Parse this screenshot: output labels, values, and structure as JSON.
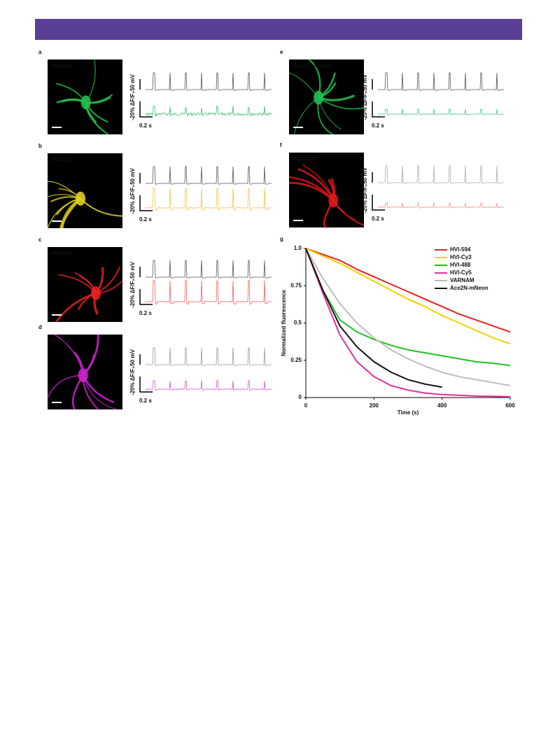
{
  "panels": [
    {
      "letter": "a",
      "label": "HVI-488",
      "voltage_scale": "50 mV",
      "fluorescence_scale": "-20% ΔF/F₀",
      "time_scale": "0.2 s"
    },
    {
      "letter": "b",
      "label": "HVI-Cy3",
      "voltage_scale": "50 mV",
      "fluorescence_scale": "-20% ΔF/F₀",
      "time_scale": "0.2 s"
    },
    {
      "letter": "c",
      "label": "HVI-594",
      "voltage_scale": "50 mV",
      "fluorescence_scale": "-20% ΔF/F₀",
      "time_scale": "0.2 s"
    },
    {
      "letter": "d",
      "label": "HVI-Cy5",
      "voltage_scale": "50 mV",
      "fluorescence_scale": "-20% ΔF/F₀",
      "time_scale": "0.2 s"
    },
    {
      "letter": "e",
      "label": "Ace2N-mNeon",
      "voltage_scale": "50 mV",
      "fluorescence_scale": "-20% ΔF/F₀",
      "time_scale": "0.2 s"
    },
    {
      "letter": "f",
      "label": "VARNAM",
      "voltage_scale": "50 mV",
      "fluorescence_scale": "-20% ΔF/F₀",
      "time_scale": "0.2 s"
    }
  ],
  "chart_data": {
    "type": "line",
    "panel_label": "g",
    "xlabel": "Time (s)",
    "ylabel": "Normalized fluorescence",
    "x": [
      0,
      50,
      100,
      150,
      200,
      250,
      300,
      350,
      400,
      450,
      500,
      550,
      600
    ],
    "xlim": [
      0,
      600
    ],
    "ylim": [
      0,
      1
    ],
    "xticks": [
      0,
      200,
      400,
      600
    ],
    "yticks": [
      0,
      0.25,
      0.5,
      0.75,
      {
        "value": 1,
        "label": "1.0"
      }
    ],
    "legend": "upper right",
    "series": [
      {
        "name": "HVI-594",
        "color": "#e8231f",
        "values": [
          1,
          0.96,
          0.92,
          0.86,
          0.81,
          0.76,
          0.71,
          0.66,
          0.61,
          0.56,
          0.52,
          0.48,
          0.44
        ]
      },
      {
        "name": "HVI-Cy3",
        "color": "#f5d000",
        "values": [
          1,
          0.95,
          0.9,
          0.84,
          0.78,
          0.72,
          0.66,
          0.61,
          0.55,
          0.5,
          0.45,
          0.4,
          0.36
        ]
      },
      {
        "name": "HVI-488",
        "color": "#1fc21f",
        "values": [
          1,
          0.72,
          0.52,
          0.44,
          0.39,
          0.35,
          0.32,
          0.3,
          0.28,
          0.26,
          0.24,
          0.23,
          0.215
        ]
      },
      {
        "name": "HVI-Cy5",
        "color": "#e0309a",
        "values": [
          1,
          0.7,
          0.42,
          0.24,
          0.14,
          0.08,
          0.05,
          0.03,
          0.02,
          0.015,
          0.01,
          0.008,
          0.005
        ]
      },
      {
        "name": "VARNAM",
        "color": "#bdbdbd",
        "values": [
          1,
          0.8,
          0.63,
          0.5,
          0.4,
          0.32,
          0.26,
          0.21,
          0.17,
          0.14,
          0.12,
          0.1,
          0.08
        ]
      },
      {
        "name": "Ace2N-mNeon",
        "color": "#111111",
        "values": [
          1,
          0.72,
          0.48,
          0.34,
          0.24,
          0.17,
          0.12,
          0.09,
          0.07,
          null,
          null,
          null,
          null
        ]
      }
    ]
  }
}
